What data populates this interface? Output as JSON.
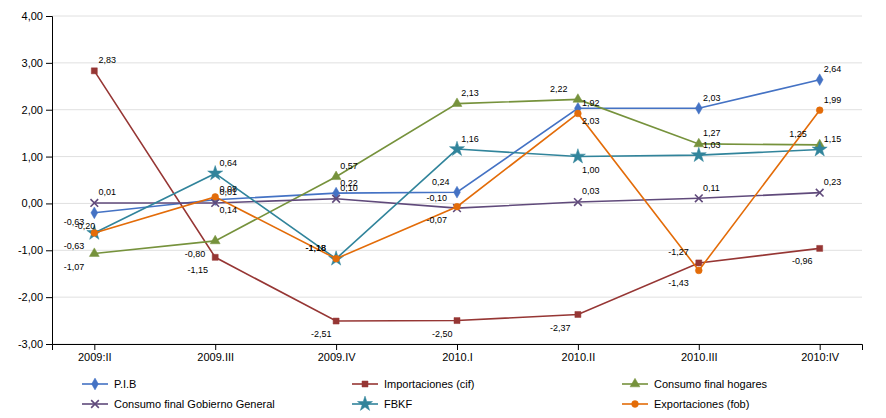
{
  "chart_data": {
    "type": "line",
    "categories": [
      "2009:II",
      "2009.III",
      "2009.IV",
      "2010.I",
      "2010.II",
      "2010.III",
      "2010:IV"
    ],
    "series": [
      {
        "name": "P.I.B",
        "color": "#4472C4",
        "marker": "diamond",
        "values": [
          -0.2,
          0.08,
          0.22,
          0.24,
          2.03,
          2.03,
          2.64
        ],
        "value_labels": [
          "-0,20",
          "0,08",
          "0,22",
          "0,24",
          "2,03",
          "2,03",
          "2,64"
        ]
      },
      {
        "name": "Importaciones (cif)",
        "color": "#963634",
        "marker": "square",
        "values": [
          2.83,
          -1.15,
          -2.51,
          -2.5,
          -2.37,
          -1.27,
          -0.96
        ],
        "value_labels": [
          "2,83",
          "-1,15",
          "-2,51",
          "-2,50",
          "-2,37",
          "-1,27",
          "-0,96"
        ]
      },
      {
        "name": "Consumo final hogares",
        "color": "#76923C",
        "marker": "triangle",
        "values": [
          -1.07,
          -0.8,
          0.57,
          2.13,
          2.22,
          1.27,
          1.25
        ],
        "value_labels": [
          "-1,07",
          "-0,80",
          "0,57",
          "2,13",
          "2,22",
          "1,27",
          "1,25"
        ]
      },
      {
        "name": "Consumo final Gobierno General",
        "color": "#604A7B",
        "marker": "x",
        "values": [
          0.01,
          0.01,
          0.1,
          -0.1,
          0.03,
          0.11,
          0.23
        ],
        "value_labels": [
          "0,01",
          "0,01",
          "0,10",
          "-0,10",
          "0,03",
          "0,11",
          "0,23"
        ]
      },
      {
        "name": "FBKF",
        "color": "#31849B",
        "marker": "star",
        "values": [
          -0.63,
          0.64,
          -1.18,
          1.16,
          1.0,
          1.03,
          1.15
        ],
        "value_labels": [
          "-0,63",
          "0,64",
          "-1,18",
          "1,16",
          "1,00",
          "1,03",
          "1,15"
        ]
      },
      {
        "name": "Exportaciones (fob)",
        "color": "#E36C09",
        "marker": "circle",
        "values": [
          -0.63,
          0.14,
          -1.18,
          -0.07,
          1.92,
          -1.43,
          1.99
        ],
        "value_labels": [
          "-0,63",
          "0,14",
          "-1,18",
          "-0,07",
          "1,92",
          "-1,43",
          "1,99"
        ]
      }
    ],
    "ylim": [
      -3.0,
      4.0
    ],
    "yticks": [
      {
        "value": -3.0,
        "label": "-3,00"
      },
      {
        "value": -2.0,
        "label": "-2,00"
      },
      {
        "value": -1.0,
        "label": "-1,00"
      },
      {
        "value": 0.0,
        "label": "0,00"
      },
      {
        "value": 1.0,
        "label": "1,00"
      },
      {
        "value": 2.0,
        "label": "2,00"
      },
      {
        "value": 3.0,
        "label": "3,00"
      },
      {
        "value": 4.0,
        "label": "4,00"
      }
    ],
    "grid": true,
    "legend": "bottom",
    "data_labels": true
  }
}
